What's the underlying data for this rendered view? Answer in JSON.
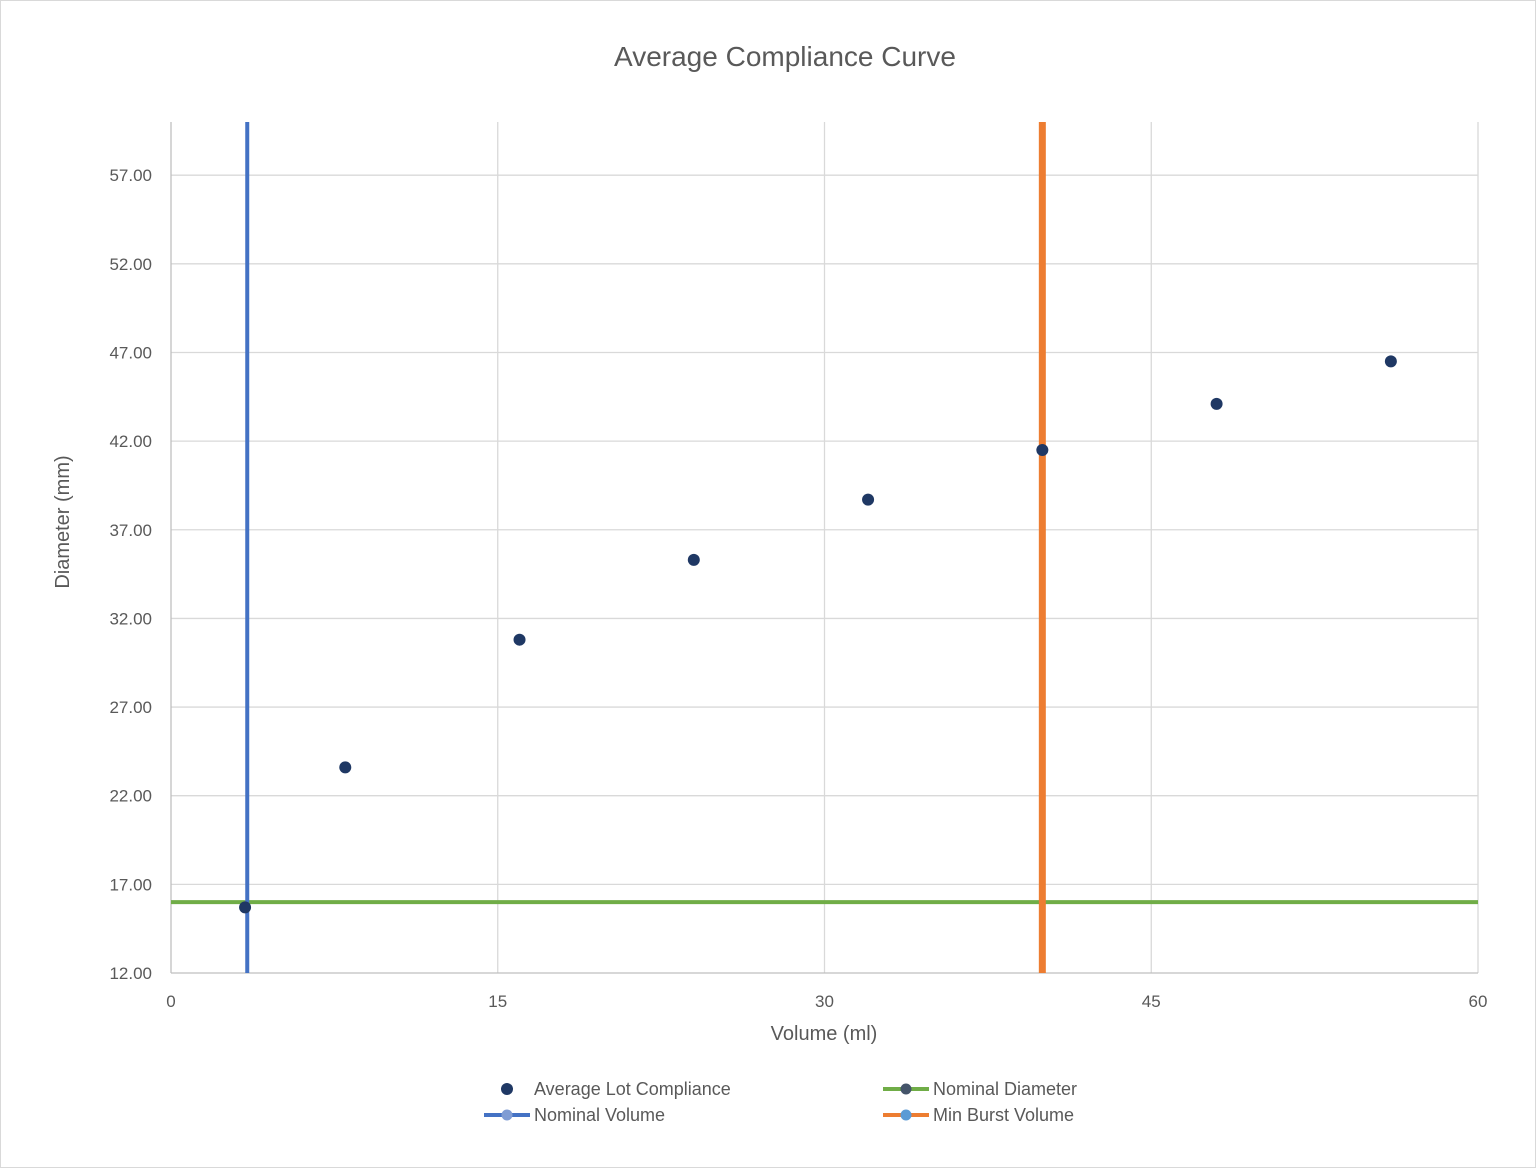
{
  "chart_data": {
    "type": "scatter",
    "title": "Average Compliance Curve",
    "xlabel": "Volume (ml)",
    "ylabel": "Diameter (mm)",
    "xlim": [
      0,
      60
    ],
    "ylim": [
      12,
      60
    ],
    "x_ticks": [
      0,
      15,
      30,
      45,
      60
    ],
    "y_ticks": [
      12,
      17,
      22,
      27,
      32,
      37,
      42,
      47,
      52,
      57
    ],
    "y_tick_labels": [
      "12.00",
      "17.00",
      "22.00",
      "27.00",
      "32.00",
      "37.00",
      "42.00",
      "47.00",
      "52.00",
      "57.00"
    ],
    "grid": true,
    "legend_position": "bottom",
    "series": [
      {
        "name": "Average Lot Compliance",
        "kind": "points",
        "color": "#1f3864",
        "points": [
          {
            "x": 3.4,
            "y": 15.7
          },
          {
            "x": 8,
            "y": 23.6
          },
          {
            "x": 16,
            "y": 30.8
          },
          {
            "x": 24,
            "y": 35.3
          },
          {
            "x": 32,
            "y": 38.7
          },
          {
            "x": 40,
            "y": 41.5
          },
          {
            "x": 48,
            "y": 44.1
          },
          {
            "x": 56,
            "y": 46.5
          }
        ]
      },
      {
        "name": "Nominal Diameter",
        "kind": "hline",
        "color": "#70ad47",
        "marker_color": "#44546a",
        "y": 16
      },
      {
        "name": "Nominal Volume",
        "kind": "vline",
        "color": "#4472c4",
        "marker_color": "#7f9cd4",
        "x": 3.5
      },
      {
        "name": "Min Burst Volume",
        "kind": "vline",
        "color": "#ed7d31",
        "marker_color": "#5b9bd5",
        "x": 40
      }
    ]
  }
}
